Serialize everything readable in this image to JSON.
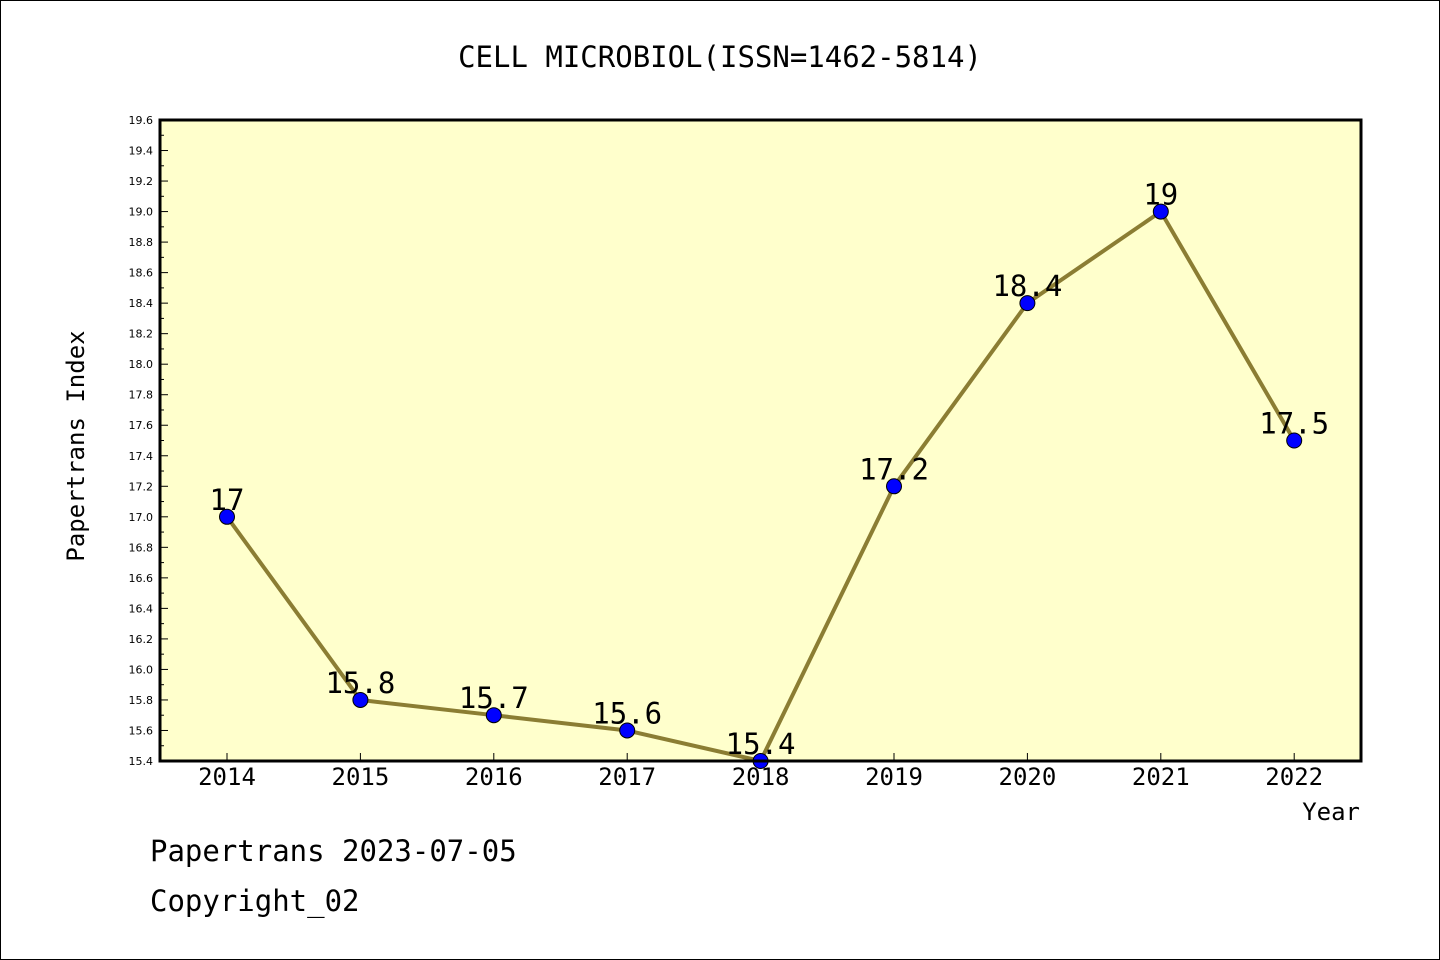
{
  "chart_data": {
    "type": "line",
    "title": "CELL MICROBIOL(ISSN=1462-5814)",
    "xlabel": "Year",
    "ylabel": "Papertrans Index",
    "categories": [
      "2014",
      "2015",
      "2016",
      "2017",
      "2018",
      "2019",
      "2020",
      "2021",
      "2022"
    ],
    "values": [
      17,
      15.8,
      15.7,
      15.6,
      15.4,
      17.2,
      18.4,
      19,
      17.5
    ],
    "value_labels": [
      "17",
      "15.8",
      "15.7",
      "15.6",
      "15.4",
      "17.2",
      "18.4",
      "19",
      "17.5"
    ],
    "ylim": [
      15.4,
      19.6
    ],
    "yticks": [
      "15.4",
      "15.6",
      "15.8",
      "16.0",
      "16.2",
      "16.4",
      "16.6",
      "16.8",
      "17.0",
      "17.2",
      "17.4",
      "17.6",
      "17.8",
      "18.0",
      "18.2",
      "18.4",
      "18.6",
      "18.8",
      "19.0",
      "19.2",
      "19.4",
      "19.6"
    ],
    "grid": false,
    "legend": "none",
    "colors": {
      "plot_background": "#ffffcc",
      "line": "#8b7d33",
      "marker": "#0000ff"
    }
  },
  "footer": {
    "line1": "Papertrans 2023-07-05",
    "line2": "Copyright_02"
  }
}
